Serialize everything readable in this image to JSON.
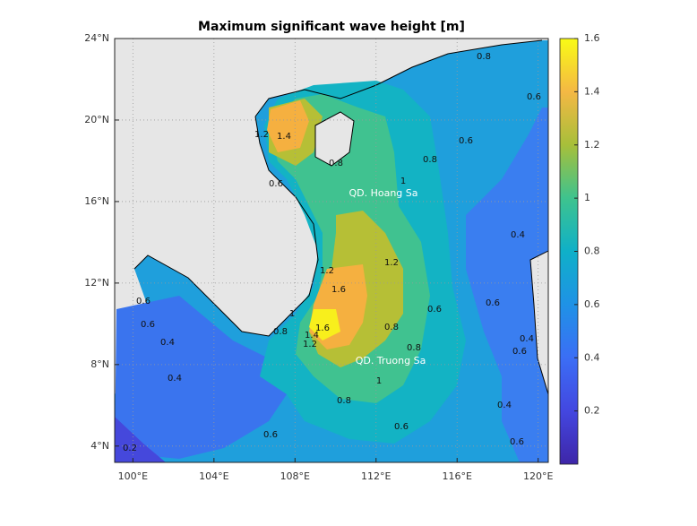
{
  "title": "Maximum significant wave height [m]",
  "map": {
    "xlim": [
      99.1,
      120.5
    ],
    "ylim": [
      3.2,
      24
    ],
    "xticks": [
      {
        "value": 100,
        "label": "100°E"
      },
      {
        "value": 104,
        "label": "104°E"
      },
      {
        "value": 108,
        "label": "108°E"
      },
      {
        "value": 112,
        "label": "112°E"
      },
      {
        "value": 116,
        "label": "116°E"
      },
      {
        "value": 120,
        "label": "120°E"
      }
    ],
    "yticks": [
      {
        "value": 4,
        "label": "4°N"
      },
      {
        "value": 8,
        "label": "8°N"
      },
      {
        "value": 12,
        "label": "12°N"
      },
      {
        "value": 16,
        "label": "16°N"
      },
      {
        "value": 20,
        "label": "20°N"
      },
      {
        "value": 24,
        "label": "24°N"
      }
    ],
    "grid": true
  },
  "colorbar": {
    "clim": [
      0,
      1.6
    ],
    "ticks": [
      0.2,
      0.4,
      0.6,
      0.8,
      1,
      1.2,
      1.4,
      1.6
    ]
  },
  "place_labels": [
    "QD. Hoang Sa",
    "QD. Truong Sa"
  ],
  "contour_labels": [
    "0.8",
    "0.6",
    "1.4",
    "1.2",
    "0.8",
    "0.6",
    "0.8",
    "1",
    "0.6",
    "1.2",
    "1.6",
    "1.2",
    "1",
    "0.8",
    "1.6",
    "1.4",
    "1.2",
    "0.8",
    "0.8",
    "0.6",
    "0.6",
    "0.4",
    "0.6",
    "0.6",
    "0.4",
    "0.4",
    "0.4",
    "0.6",
    "1",
    "0.8",
    "0.6",
    "0.6",
    "0.6",
    "0.4",
    "0.2"
  ]
}
